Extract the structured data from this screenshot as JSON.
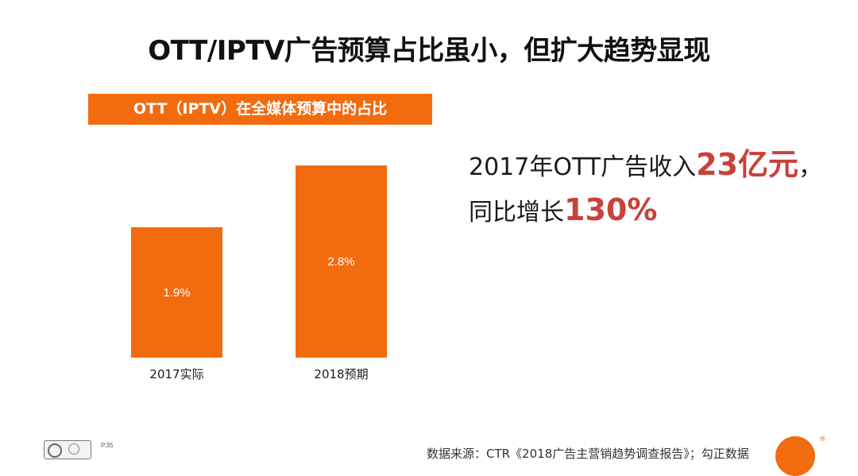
{
  "title": "OTT/IPTV广告预算占比虽小，但扩大趋势显现",
  "chart_data": {
    "type": "bar",
    "title": "OTT（IPTV）在全媒体预算中的占比",
    "categories": [
      "2017实际",
      "2018预期"
    ],
    "values": [
      1.9,
      2.8
    ],
    "value_labels": [
      "1.9%",
      "2.8%"
    ],
    "unit": "%",
    "ylim": [
      0,
      3.3
    ],
    "grid": false,
    "bar_color": "#f26b0f"
  },
  "highlight": {
    "line1_prefix": "2017年OTT广告收入",
    "line1_value": "23亿元",
    "line1_suffix": "，",
    "line2_prefix": "同比增长",
    "line2_value": "130%"
  },
  "footer": {
    "page": "P.35",
    "source": "数据来源：CTR《2018广告主营销趋势调查报告》；勾正数据"
  },
  "colors": {
    "accent": "#f26b0f",
    "highlight": "#c8413a"
  }
}
